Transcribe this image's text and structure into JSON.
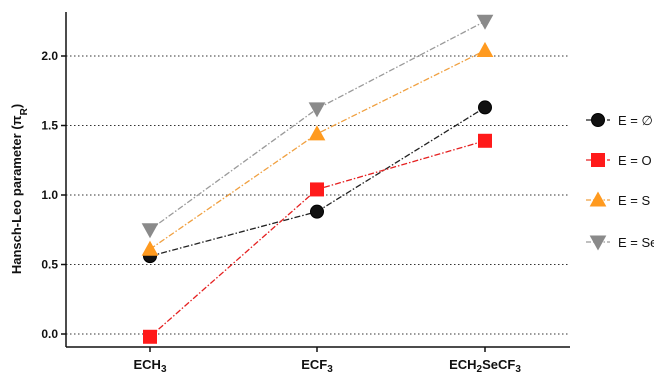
{
  "chart_data": {
    "type": "line",
    "ylabel": "Hansch-Leo parameter (π",
    "ylabel_sub": "R",
    "ylabel_close": ")",
    "ylim": [
      -0.05,
      2.3
    ],
    "yticks": [
      "0.0",
      "0.5",
      "1.0",
      "1.5",
      "2.0"
    ],
    "ytick_values": [
      0.0,
      0.5,
      1.0,
      1.5,
      2.0
    ],
    "grid": "horizontal-dotted",
    "legend_position": "right",
    "categories": [
      {
        "main": "ECH",
        "sub": "3",
        "rest": "",
        "sub2": ""
      },
      {
        "main": "ECF",
        "sub": "3",
        "rest": "",
        "sub2": ""
      },
      {
        "main": "ECH",
        "sub": "2",
        "rest": "SeCF",
        "sub2": "3"
      }
    ],
    "series": [
      {
        "name": "E = ∅",
        "values": [
          0.56,
          0.88,
          1.63
        ],
        "color": "#111111",
        "marker": "circle",
        "line_color": "#222222"
      },
      {
        "name": "E = O",
        "values": [
          -0.02,
          1.04,
          1.39
        ],
        "color": "#ff1a1a",
        "marker": "square",
        "line_color": "#e52020"
      },
      {
        "name": "E = S",
        "values": [
          0.61,
          1.44,
          2.04
        ],
        "color": "#ff9a1f",
        "marker": "triangle-up",
        "line_color": "#f0a040"
      },
      {
        "name": "E = Se",
        "values": [
          0.75,
          1.62,
          2.25
        ],
        "color": "#8a8a8a",
        "marker": "triangle-down",
        "line_color": "#9a9a9a"
      }
    ]
  }
}
